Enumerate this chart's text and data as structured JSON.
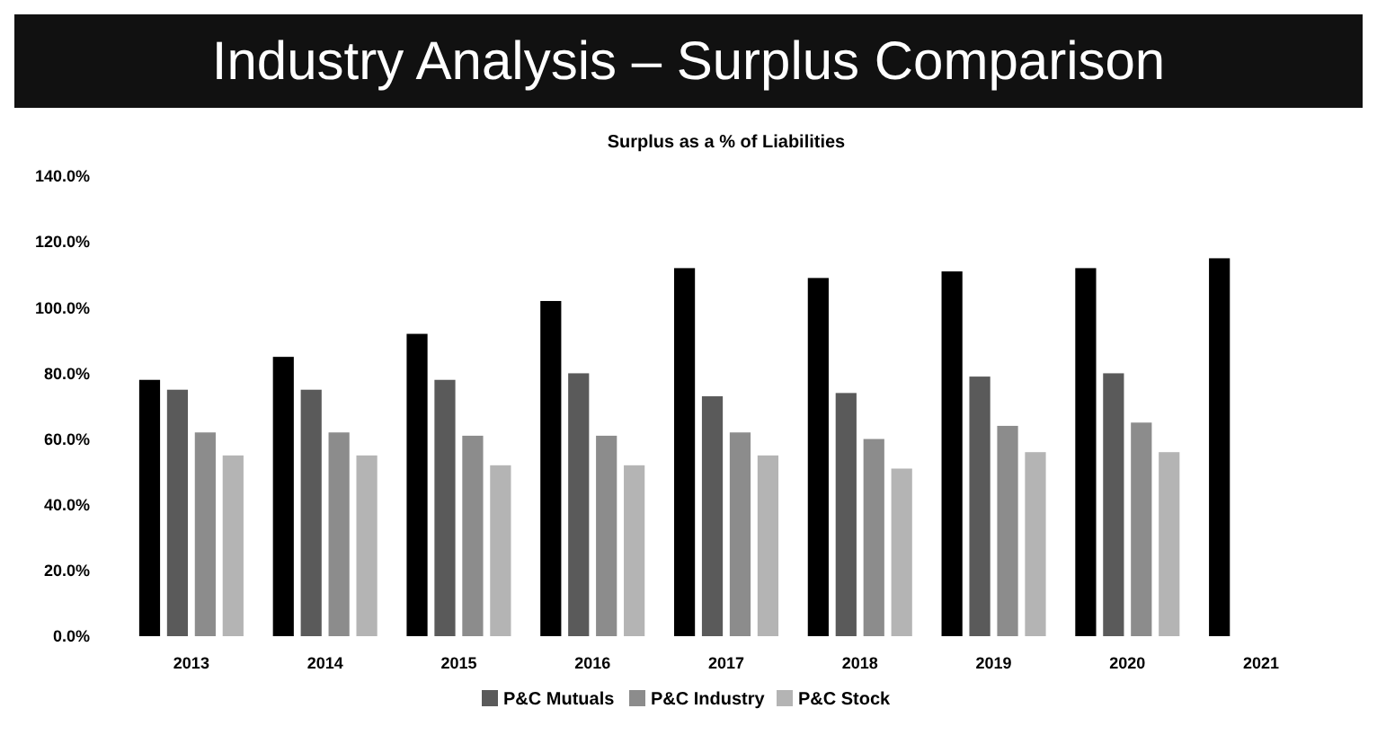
{
  "chart_data": {
    "type": "bar",
    "title": "Industry Analysis – Surplus Comparison",
    "subtitle": "Surplus as a % of Liabilities",
    "categories": [
      "2013",
      "2014",
      "2015",
      "2016",
      "2017",
      "2018",
      "2019",
      "2020",
      "2021"
    ],
    "series": [
      {
        "color": "#000000",
        "values": [
          78,
          85,
          92,
          102,
          112,
          109,
          111,
          112,
          115
        ]
      },
      {
        "name": "P&C Mutuals",
        "color": "#5a5a5a",
        "values": [
          75,
          75,
          78,
          80,
          73,
          74,
          79,
          80,
          null
        ]
      },
      {
        "name": "P&C Industry",
        "color": "#8c8c8c",
        "values": [
          62,
          62,
          61,
          61,
          62,
          60,
          64,
          65,
          null
        ]
      },
      {
        "name": "P&C Stock",
        "color": "#b4b4b4",
        "values": [
          55,
          55,
          52,
          52,
          55,
          51,
          56,
          56,
          null
        ]
      }
    ],
    "ylim": [
      0,
      140
    ],
    "yticks": [
      {
        "value": 0,
        "label": "0.0%"
      },
      {
        "value": 20,
        "label": "20.0%"
      },
      {
        "value": 40,
        "label": "40.0%"
      },
      {
        "value": 60,
        "label": "60.0%"
      },
      {
        "value": 80,
        "label": "80.0%"
      },
      {
        "value": 100,
        "label": "100.0%"
      },
      {
        "value": 120,
        "label": "120.0%"
      },
      {
        "value": 140,
        "label": "140.0%"
      }
    ],
    "legend": "bottom",
    "grid": false
  }
}
